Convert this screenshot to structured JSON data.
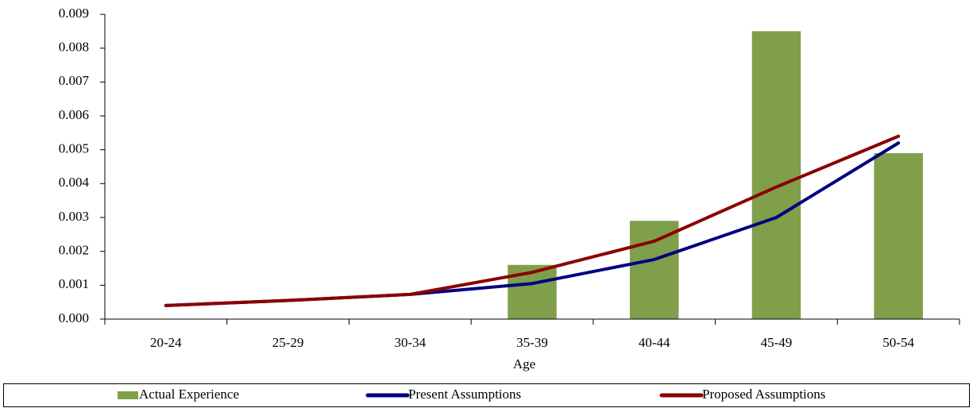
{
  "chart_data": {
    "type": "combo",
    "x_label": "Age",
    "categories": [
      "20-24",
      "25-29",
      "30-34",
      "35-39",
      "40-44",
      "45-49",
      "50-54"
    ],
    "series": [
      {
        "name": "Actual Experience",
        "type": "bar",
        "color": "#7f9f4a",
        "values": [
          null,
          null,
          null,
          0.0016,
          0.0029,
          0.0085,
          0.0049
        ]
      },
      {
        "name": "Present Assumptions",
        "type": "line",
        "color": "#000080",
        "values": [
          0.0004,
          0.00055,
          0.00073,
          0.00105,
          0.00176,
          0.003,
          0.0052
        ]
      },
      {
        "name": "Proposed Assumptions",
        "type": "line",
        "color": "#8b0000",
        "values": [
          0.0004,
          0.00055,
          0.00073,
          0.00138,
          0.0023,
          0.0039,
          0.0054
        ]
      }
    ],
    "ylim": [
      0,
      0.009
    ],
    "yticks": [
      {
        "value": 0,
        "label": "0.000"
      },
      {
        "value": 0.001,
        "label": "0.001"
      },
      {
        "value": 0.002,
        "label": "0.002"
      },
      {
        "value": 0.003,
        "label": "0.003"
      },
      {
        "value": 0.004,
        "label": "0.004"
      },
      {
        "value": 0.005,
        "label": "0.005"
      },
      {
        "value": 0.006,
        "label": "0.006"
      },
      {
        "value": 0.007,
        "label": "0.007"
      },
      {
        "value": 0.008,
        "label": "0.008"
      },
      {
        "value": 0.009,
        "label": "0.009"
      }
    ],
    "grid": false,
    "legend": "bottom"
  }
}
